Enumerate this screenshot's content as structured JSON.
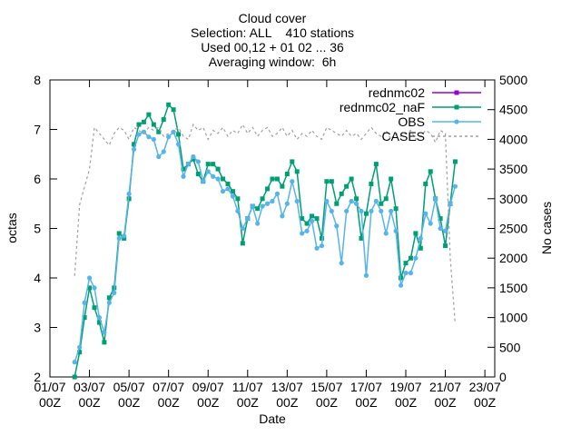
{
  "chart_data": {
    "type": "line",
    "title": [
      "Cloud cover",
      "Selection: ALL    410 stations",
      "Used 00,12 + 01 02 ... 36",
      "Averaging window:  6h"
    ],
    "xlabel": "Date",
    "ylabel": "octas",
    "y2label": "No cases",
    "x": [
      "02/07 06Z",
      "02/07 12Z",
      "02/07 18Z",
      "03/07 00Z",
      "03/07 06Z",
      "03/07 12Z",
      "03/07 18Z",
      "04/07 00Z",
      "04/07 06Z",
      "04/07 12Z",
      "04/07 18Z",
      "05/07 00Z",
      "05/07 06Z",
      "05/07 12Z",
      "05/07 18Z",
      "06/07 00Z",
      "06/07 06Z",
      "06/07 12Z",
      "06/07 18Z",
      "07/07 00Z",
      "07/07 06Z",
      "07/07 12Z",
      "07/07 18Z",
      "08/07 00Z",
      "08/07 06Z",
      "08/07 12Z",
      "08/07 18Z",
      "09/07 00Z",
      "09/07 06Z",
      "09/07 12Z",
      "09/07 18Z",
      "10/07 00Z",
      "10/07 06Z",
      "10/07 12Z",
      "10/07 18Z",
      "11/07 00Z",
      "11/07 06Z",
      "11/07 12Z",
      "11/07 18Z",
      "12/07 00Z",
      "12/07 06Z",
      "12/07 12Z",
      "12/07 18Z",
      "13/07 00Z",
      "13/07 06Z",
      "13/07 12Z",
      "13/07 18Z",
      "14/07 00Z",
      "14/07 06Z",
      "14/07 12Z",
      "14/07 18Z",
      "15/07 00Z",
      "15/07 06Z",
      "15/07 12Z",
      "15/07 18Z",
      "16/07 00Z",
      "16/07 06Z",
      "16/07 12Z",
      "16/07 18Z",
      "17/07 00Z",
      "17/07 06Z",
      "17/07 12Z",
      "17/07 18Z",
      "18/07 00Z",
      "18/07 06Z",
      "18/07 12Z",
      "18/07 18Z",
      "19/07 00Z",
      "19/07 06Z",
      "19/07 12Z",
      "19/07 18Z",
      "20/07 00Z",
      "20/07 06Z",
      "20/07 12Z",
      "20/07 18Z",
      "21/07 00Z",
      "21/07 06Z",
      "21/07 12Z"
    ],
    "xlim": [
      "01/07 00Z",
      "23/07 12Z"
    ],
    "xticks": [
      "01/07\n00Z",
      "03/07\n00Z",
      "05/07\n00Z",
      "07/07\n00Z",
      "09/07\n00Z",
      "11/07\n00Z",
      "13/07\n00Z",
      "15/07\n00Z",
      "17/07\n00Z",
      "19/07\n00Z",
      "21/07\n00Z",
      "23/07\n00Z"
    ],
    "ylim": [
      2,
      8
    ],
    "yticks": [
      2,
      3,
      4,
      5,
      6,
      7,
      8
    ],
    "y2lim": [
      0,
      5000
    ],
    "y2ticks": [
      0,
      500,
      1000,
      1500,
      2000,
      2500,
      3000,
      3500,
      4000,
      4500,
      5000
    ],
    "series": [
      {
        "name": "rednmc02",
        "color": "#9400d3",
        "marker": "square",
        "values": [
          null,
          null,
          null,
          null,
          null,
          null,
          null,
          null,
          null,
          null,
          null,
          null,
          null,
          null,
          null,
          null,
          null,
          null,
          null,
          null,
          null,
          null,
          null,
          null,
          null,
          null,
          null,
          null,
          null,
          null,
          null,
          null,
          null,
          null,
          null,
          null,
          null,
          null,
          null,
          null,
          null,
          null,
          null,
          null,
          null,
          null,
          null,
          null,
          null,
          null,
          null,
          null,
          null,
          null,
          null,
          null,
          null,
          null,
          null,
          null,
          null,
          null,
          null,
          null,
          null,
          null,
          null,
          null,
          null,
          null,
          null,
          null,
          null,
          null,
          null,
          null,
          null,
          null
        ]
      },
      {
        "name": "rednmc02_naF",
        "color": "#009e73",
        "marker": "square",
        "values": [
          2.0,
          2.5,
          3.2,
          3.8,
          3.4,
          3.1,
          2.7,
          3.6,
          3.8,
          4.9,
          4.8,
          5.6,
          6.7,
          7.1,
          7.15,
          7.3,
          7.1,
          6.95,
          7.2,
          7.5,
          7.4,
          6.9,
          6.2,
          6.3,
          6.4,
          6.1,
          5.95,
          6.3,
          6.3,
          6.2,
          6.0,
          5.9,
          5.75,
          5.6,
          4.7,
          5.2,
          5.45,
          5.4,
          5.6,
          5.8,
          6.0,
          6.0,
          5.85,
          6.1,
          6.35,
          6.15,
          5.2,
          5.1,
          5.25,
          5.2,
          4.8,
          5.95,
          5.95,
          5.5,
          5.7,
          5.85,
          6.0,
          5.6,
          4.8,
          5.3,
          5.9,
          6.3,
          5.5,
          5.6,
          6.0,
          5.4,
          4.0,
          4.3,
          4.4,
          4.9,
          4.6,
          5.9,
          6.15,
          5.6,
          5.2,
          4.65,
          5.5,
          6.35
        ]
      },
      {
        "name": "OBS",
        "color": "#56b4e9",
        "marker": "circle",
        "values": [
          2.3,
          2.6,
          3.5,
          4.0,
          3.8,
          3.2,
          2.9,
          3.5,
          3.7,
          4.8,
          4.85,
          5.7,
          6.6,
          6.9,
          6.95,
          6.85,
          6.8,
          6.45,
          6.55,
          6.85,
          6.95,
          6.7,
          6.05,
          6.3,
          6.45,
          6.35,
          5.95,
          6.15,
          6.05,
          6.0,
          5.75,
          5.8,
          5.65,
          5.35,
          5.0,
          5.2,
          5.45,
          5.1,
          5.45,
          5.5,
          5.55,
          5.7,
          5.25,
          5.5,
          5.95,
          5.55,
          4.9,
          4.95,
          5.15,
          4.6,
          4.65,
          5.55,
          5.35,
          5.05,
          4.3,
          5.35,
          5.55,
          5.5,
          5.35,
          4.05,
          5.35,
          5.55,
          5.35,
          4.9,
          5.35,
          4.95,
          3.85,
          4.1,
          4.1,
          4.4,
          4.8,
          5.3,
          5.1,
          5.6,
          5.0,
          4.95,
          5.5,
          5.85
        ]
      },
      {
        "name": "CASES",
        "color": "#a0a0a0",
        "marker": "none",
        "dashed": true,
        "axis": "y2",
        "values": [
          1700,
          2900,
          3200,
          3500,
          4200,
          4100,
          4000,
          3900,
          4100,
          4200,
          4150,
          4000,
          4200,
          4150,
          4100,
          4200,
          4150,
          4200,
          4050,
          4100,
          4150,
          4200,
          4050,
          4000,
          4250,
          4150,
          4200,
          4000,
          4150,
          4100,
          4200,
          4050,
          4150,
          4100,
          4250,
          4100,
          4200,
          4050,
          4150,
          4200,
          4050,
          4100,
          4200,
          4050,
          4150,
          4000,
          4100,
          4050,
          4150,
          4050,
          4000,
          4200,
          4150,
          4100,
          4050,
          4150,
          4050,
          4100,
          4000,
          4100,
          4200,
          4100,
          4050,
          4150,
          4000,
          4100,
          4050,
          4100,
          4150,
          4000,
          4050,
          4150,
          4100,
          3950,
          4150,
          4100,
          2000,
          900
        ]
      }
    ],
    "legend": "top-right"
  }
}
